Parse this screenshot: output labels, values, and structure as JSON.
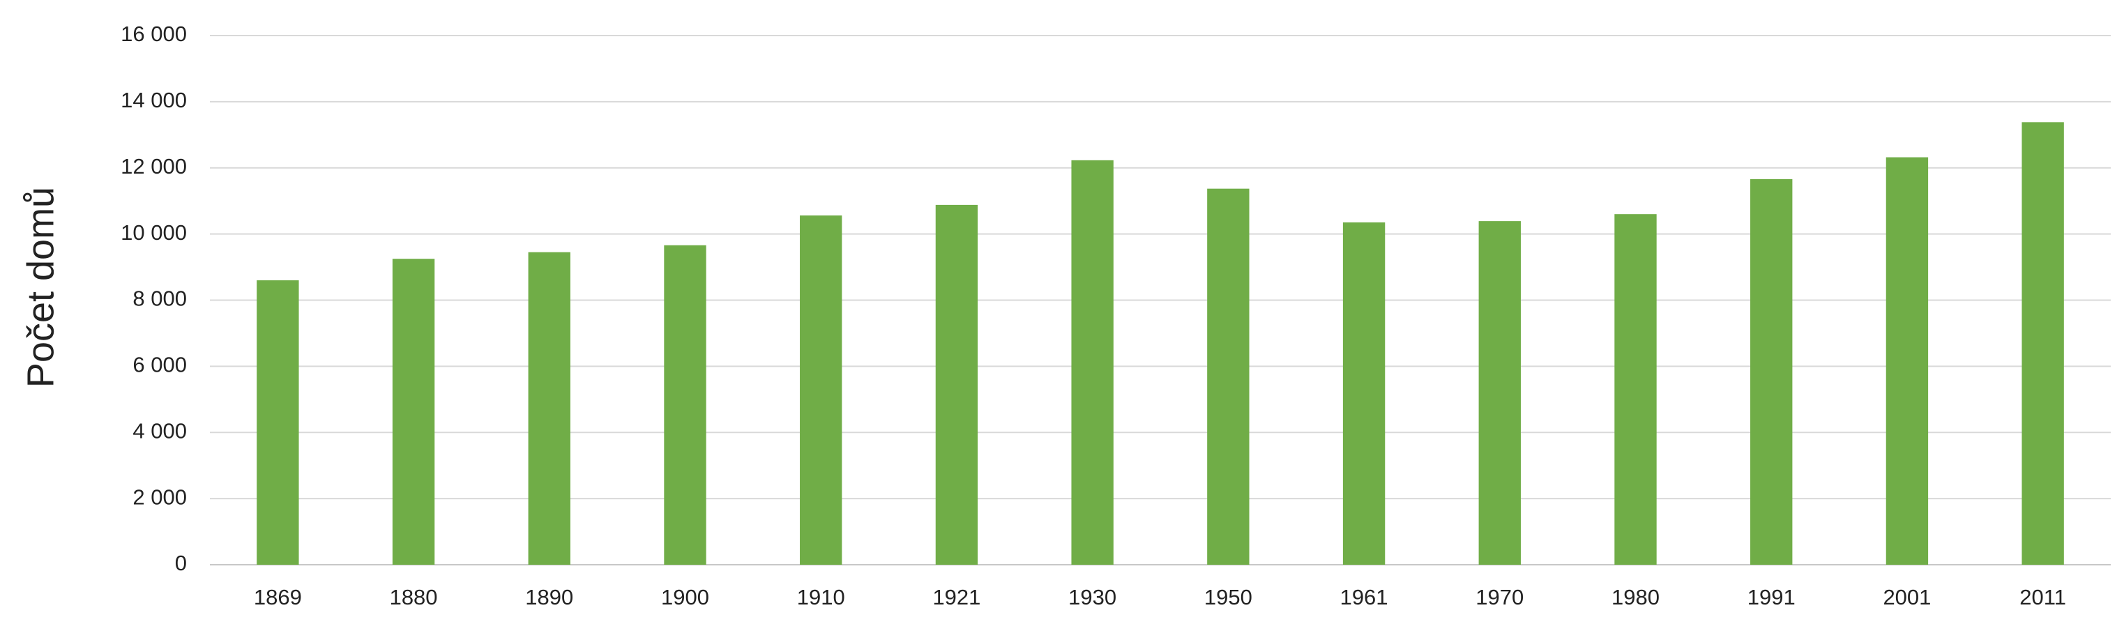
{
  "chart_data": {
    "type": "bar",
    "y_label": "Počet domů",
    "categories": [
      "1869",
      "1880",
      "1890",
      "1900",
      "1910",
      "1921",
      "1930",
      "1950",
      "1961",
      "1970",
      "1980",
      "1991",
      "2001",
      "2011"
    ],
    "values": [
      8600,
      9250,
      9450,
      9660,
      10560,
      10880,
      12230,
      11370,
      10350,
      10390,
      10600,
      11660,
      12320,
      13380
    ],
    "color": "#70ad47",
    "ylim": [
      0,
      16000
    ],
    "yticks": [
      0,
      {
        "value": 2000,
        "label": "2 000"
      },
      {
        "value": 4000,
        "label": "4 000"
      },
      {
        "value": 6000,
        "label": "6 000"
      },
      {
        "value": 8000,
        "label": "8 000"
      },
      {
        "value": 10000,
        "label": "10 000"
      },
      {
        "value": 12000,
        "label": "12 000"
      },
      {
        "value": 14000,
        "label": "14 000"
      },
      {
        "value": 16000,
        "label": "16 000"
      }
    ],
    "grid": true
  }
}
